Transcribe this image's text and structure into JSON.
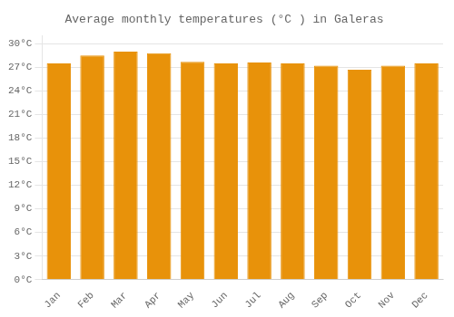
{
  "chart_data": {
    "type": "bar",
    "title": "Average monthly temperatures (°C ) in Galeras",
    "categories": [
      "Jan",
      "Feb",
      "Mar",
      "Apr",
      "May",
      "Jun",
      "Jul",
      "Aug",
      "Sep",
      "Oct",
      "Nov",
      "Dec"
    ],
    "values": [
      27.5,
      28.5,
      29.0,
      28.8,
      27.7,
      27.5,
      27.6,
      27.5,
      27.2,
      26.7,
      27.2,
      27.5
    ],
    "color": "#E8920A",
    "ylim": [
      0,
      31
    ],
    "yticks": [
      {
        "value": 0,
        "label": "0°C"
      },
      {
        "value": 3,
        "label": "3°C"
      },
      {
        "value": 6,
        "label": "6°C"
      },
      {
        "value": 9,
        "label": "9°C"
      },
      {
        "value": 12,
        "label": "12°C"
      },
      {
        "value": 15,
        "label": "15°C"
      },
      {
        "value": 18,
        "label": "18°C"
      },
      {
        "value": 21,
        "label": "21°C"
      },
      {
        "value": 24,
        "label": "24°C"
      },
      {
        "value": 27,
        "label": "27°C"
      },
      {
        "value": 30,
        "label": "30°C"
      }
    ],
    "grid": true
  }
}
